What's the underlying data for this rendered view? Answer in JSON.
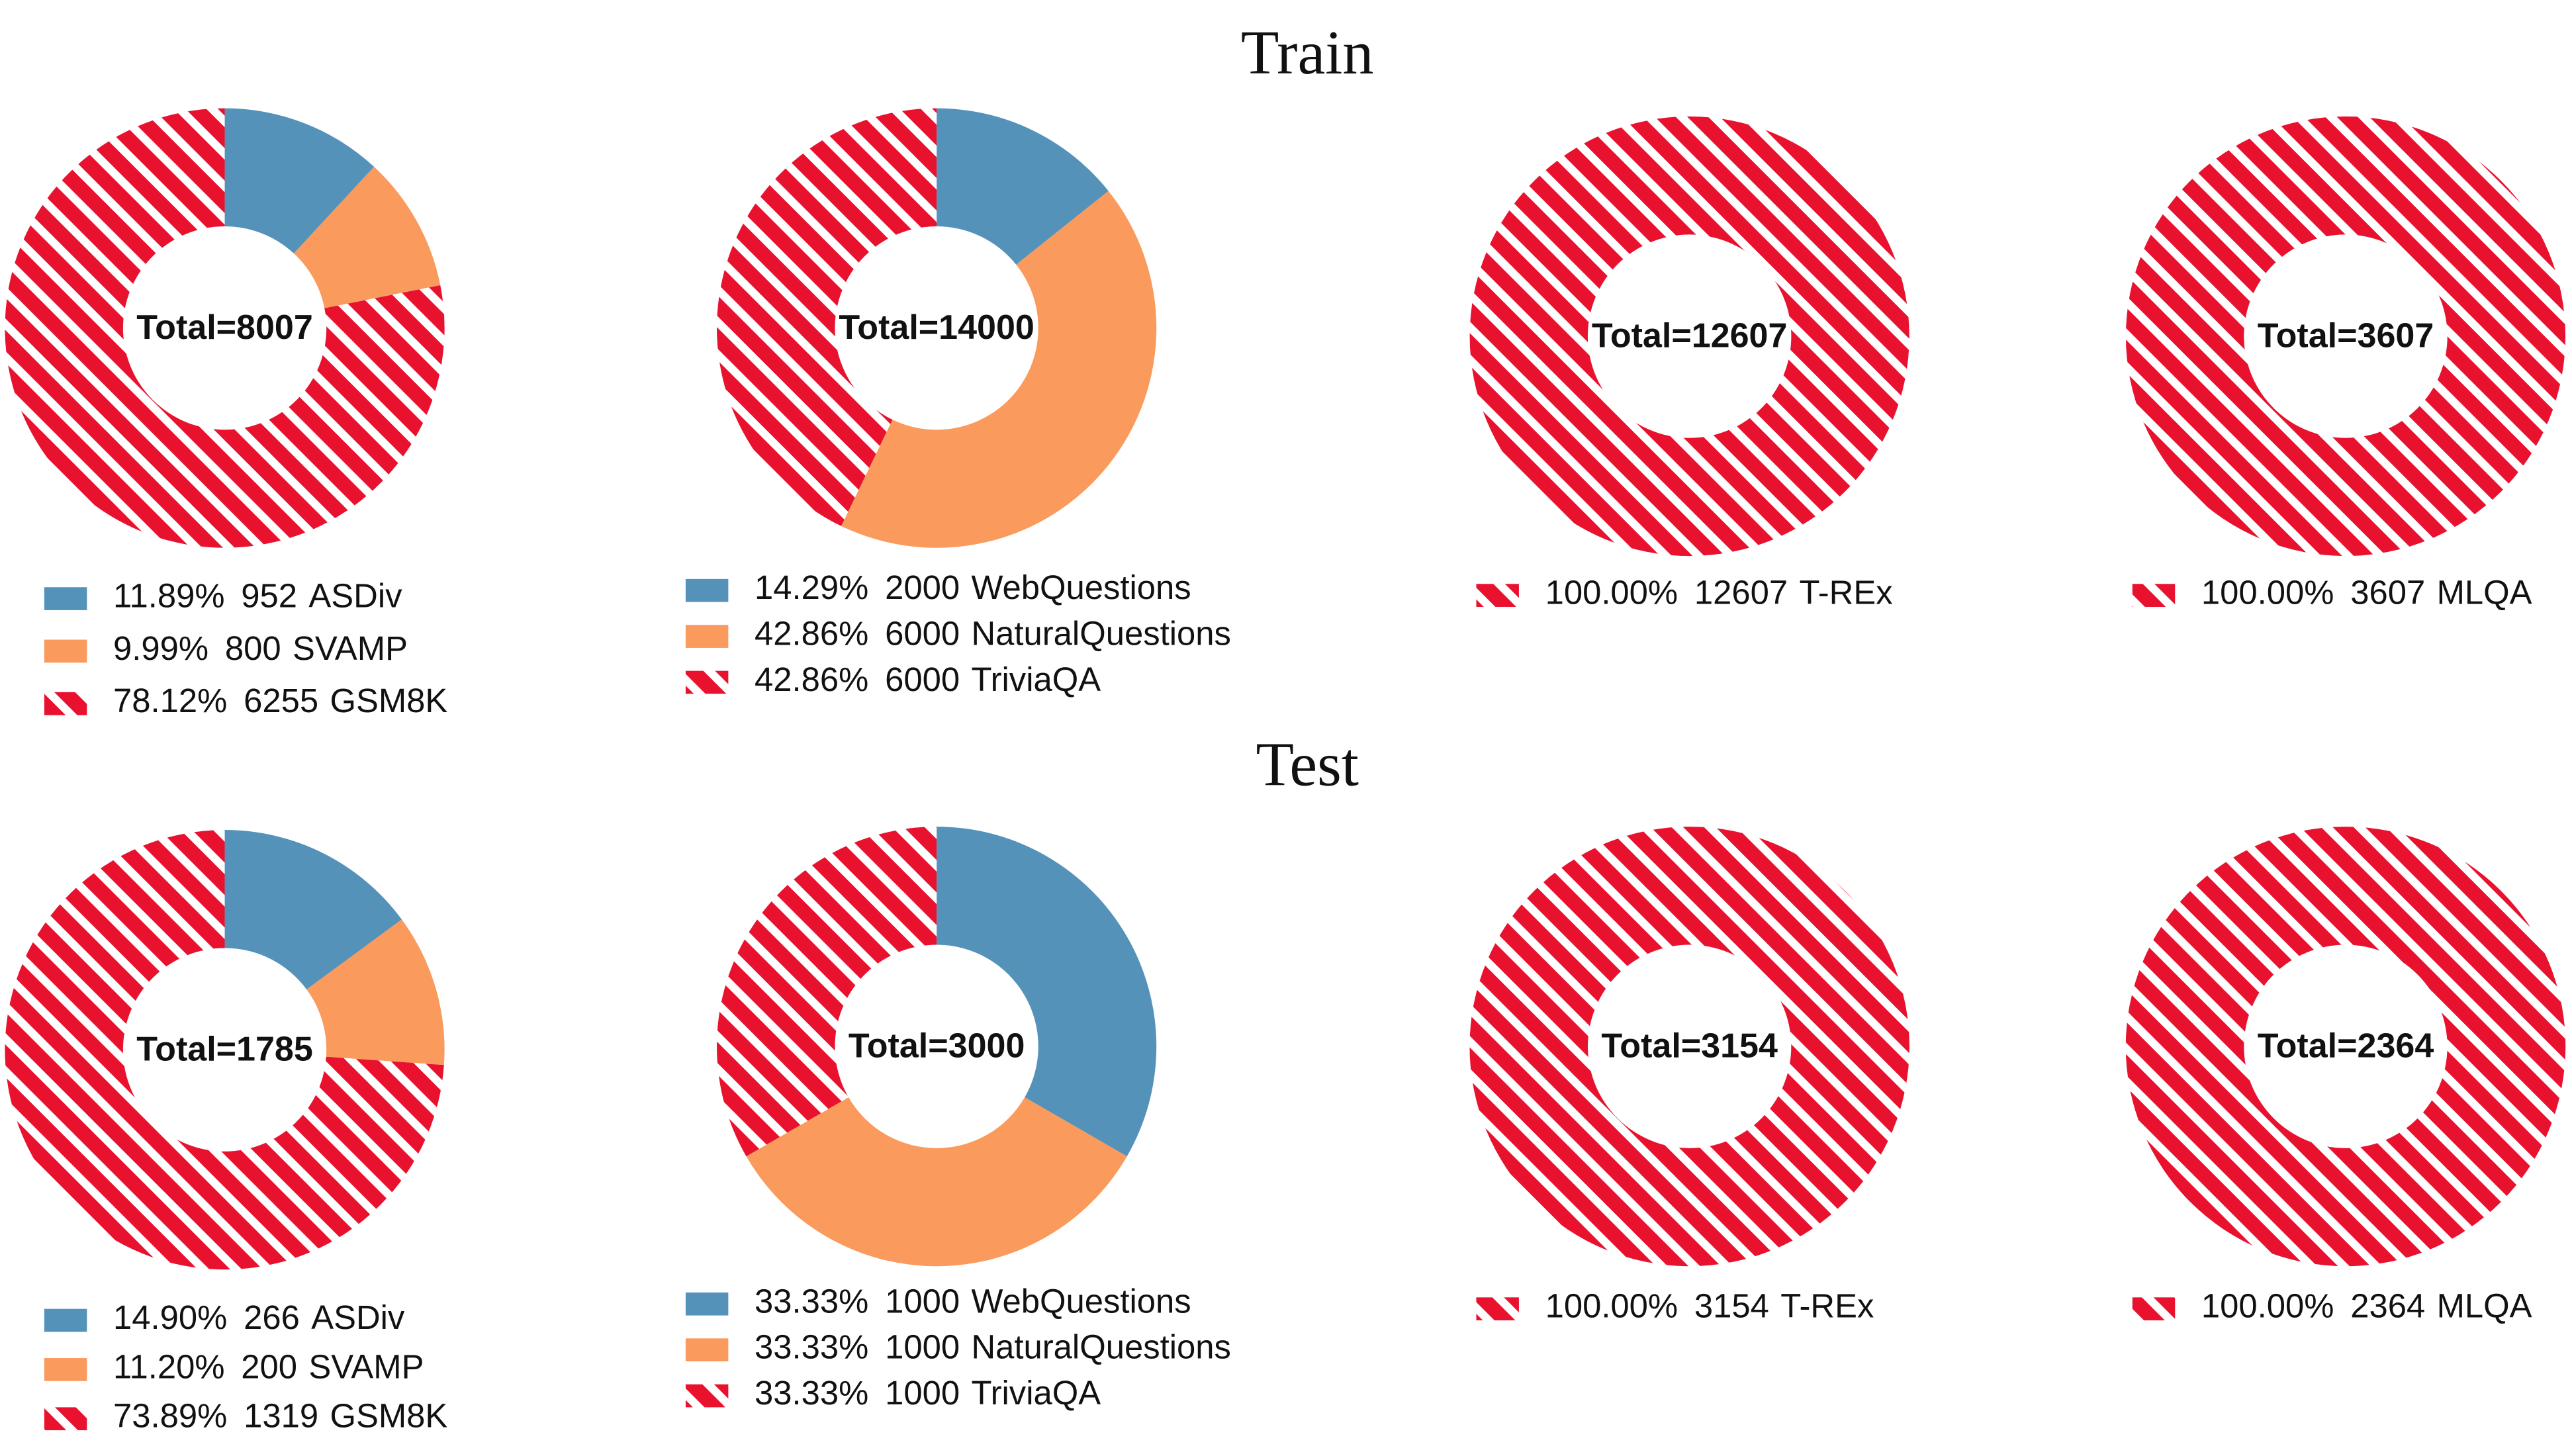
{
  "headings": [
    "Train",
    "Test"
  ],
  "chart_data": [
    {
      "type": "donut",
      "center_label": "Total=8007",
      "categories": [
        "ASDiv",
        "SVAMP",
        "GSM8K"
      ],
      "values": [
        952,
        800,
        6255
      ],
      "percent_labels": [
        "11.89%",
        "9.99%",
        "78.12%"
      ],
      "colors": [
        "#5592b9",
        "#fa9a5c",
        "#e8122f"
      ],
      "hatch": [
        false,
        false,
        true
      ]
    },
    {
      "type": "donut",
      "center_label": "Total=14000",
      "categories": [
        "WebQuestions",
        "NaturalQuestions",
        "TriviaQA"
      ],
      "values": [
        2000,
        6000,
        6000
      ],
      "percent_labels": [
        "14.29%",
        "42.86%",
        "42.86%"
      ],
      "colors": [
        "#5592b9",
        "#fa9a5c",
        "#e8122f"
      ],
      "hatch": [
        false,
        false,
        true
      ]
    },
    {
      "type": "donut",
      "center_label": "Total=12607",
      "categories": [
        "T-REx"
      ],
      "values": [
        12607
      ],
      "percent_labels": [
        "100.00%"
      ],
      "colors": [
        "#e8122f"
      ],
      "hatch": [
        true
      ]
    },
    {
      "type": "donut",
      "center_label": "Total=3607",
      "categories": [
        "MLQA"
      ],
      "values": [
        3607
      ],
      "percent_labels": [
        "100.00%"
      ],
      "colors": [
        "#e8122f"
      ],
      "hatch": [
        true
      ]
    },
    {
      "type": "donut",
      "center_label": "Total=1785",
      "categories": [
        "ASDiv",
        "SVAMP",
        "GSM8K"
      ],
      "values": [
        266,
        200,
        1319
      ],
      "percent_labels": [
        "14.90%",
        "11.20%",
        "73.89%"
      ],
      "colors": [
        "#5592b9",
        "#fa9a5c",
        "#e8122f"
      ],
      "hatch": [
        false,
        false,
        true
      ]
    },
    {
      "type": "donut",
      "center_label": "Total=3000",
      "categories": [
        "WebQuestions",
        "NaturalQuestions",
        "TriviaQA"
      ],
      "values": [
        1000,
        1000,
        1000
      ],
      "percent_labels": [
        "33.33%",
        "33.33%",
        "33.33%"
      ],
      "colors": [
        "#5592b9",
        "#fa9a5c",
        "#e8122f"
      ],
      "hatch": [
        false,
        false,
        true
      ]
    },
    {
      "type": "donut",
      "center_label": "Total=3154",
      "categories": [
        "T-REx"
      ],
      "values": [
        3154
      ],
      "percent_labels": [
        "100.00%"
      ],
      "colors": [
        "#e8122f"
      ],
      "hatch": [
        true
      ]
    },
    {
      "type": "donut",
      "center_label": "Total=2364",
      "categories": [
        "MLQA"
      ],
      "values": [
        2364
      ],
      "percent_labels": [
        "100.00%"
      ],
      "colors": [
        "#e8122f"
      ],
      "hatch": [
        true
      ]
    }
  ]
}
